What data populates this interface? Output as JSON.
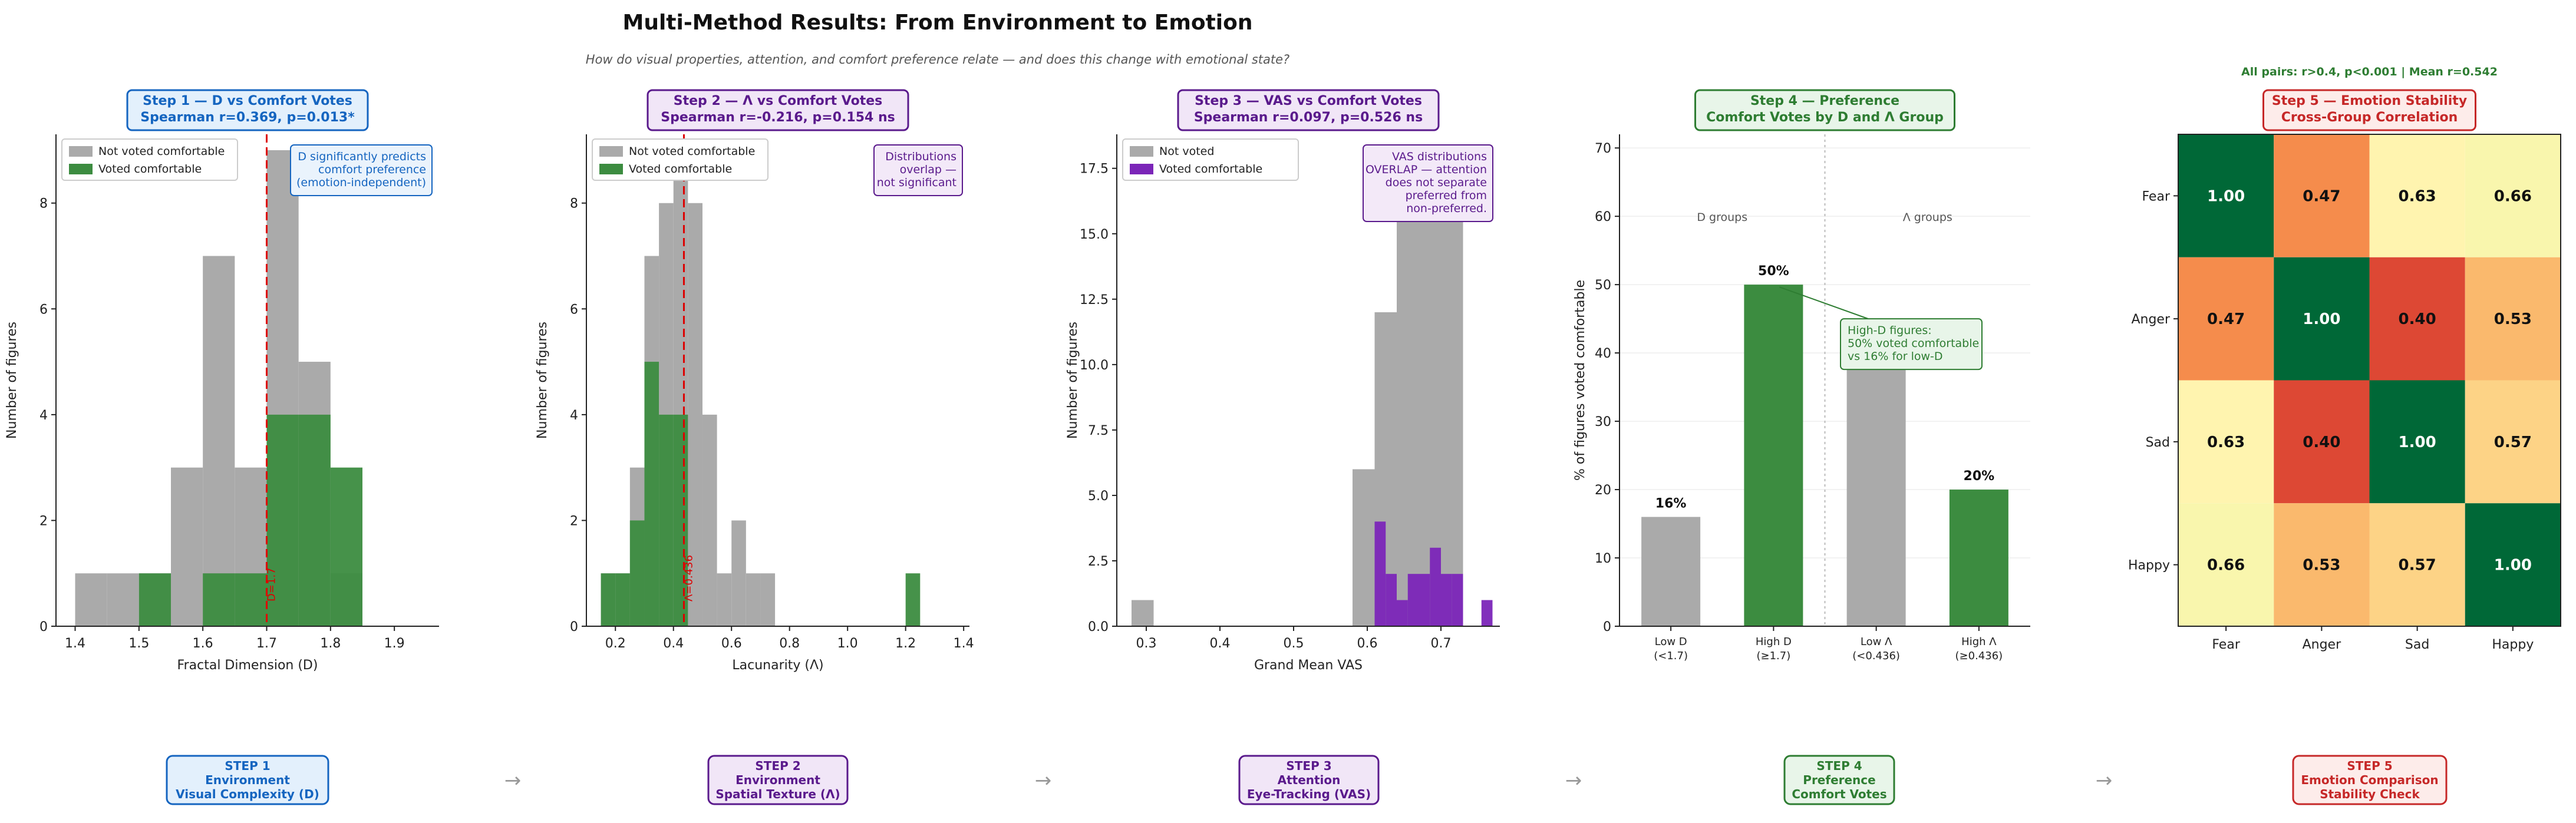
{
  "figure": {
    "title": "Multi-Method Results: From Environment to Emotion",
    "subtitle": "How do visual properties, attention, and comfort preference relate — and does this change with emotional state?"
  },
  "colors": {
    "gray": "#aaaaaa",
    "green": "#3c8c40",
    "purple": "#7b25b8",
    "red_line": "#dd0000",
    "blue": "#1565c0",
    "dark_purple": "#5a1a8c",
    "dark_green": "#2e7d32",
    "dark_red": "#c62828"
  },
  "steps": [
    {
      "label": "STEP 1",
      "l2": "Environment",
      "l3": "Visual Complexity (D)",
      "color": "#1565c0",
      "bg": "#e3f0fc"
    },
    {
      "label": "STEP 2",
      "l2": "Environment",
      "l3": "Spatial Texture (Λ)",
      "color": "#5a1a8c",
      "bg": "#f1e6f7"
    },
    {
      "label": "STEP 3",
      "l2": "Attention",
      "l3": "Eye-Tracking (VAS)",
      "color": "#5a1a8c",
      "bg": "#f1e6f7"
    },
    {
      "label": "STEP 4",
      "l2": "Preference",
      "l3": "Comfort Votes",
      "color": "#2e7d32",
      "bg": "#e8f5e9"
    },
    {
      "label": "STEP 5",
      "l2": "Emotion Comparison",
      "l3": "Stability Check",
      "color": "#c62828",
      "bg": "#fdecea"
    }
  ],
  "arrow_glyph": "→",
  "chart_data": [
    {
      "type": "histogram",
      "title": "Step 1 — D vs Comfort Votes",
      "title2": "Spearman r=0.369, p=0.013*",
      "title_color": "#1565c0",
      "title_bg": "#e3f0fc",
      "xlabel": "Fractal Dimension (D)",
      "ylabel": "Number of figures",
      "xlim": [
        1.37,
        1.97
      ],
      "ylim": [
        0,
        9.3
      ],
      "xticks": [
        1.4,
        1.5,
        1.6,
        1.7,
        1.8,
        1.9
      ],
      "yticks": [
        0,
        2,
        4,
        6,
        8
      ],
      "bin_width": 0.05,
      "series": [
        {
          "name": "Not voted comfortable",
          "color": "#aaaaaa",
          "bins": [
            [
              1.4,
              1
            ],
            [
              1.45,
              1
            ],
            [
              1.5,
              1
            ],
            [
              1.55,
              3
            ],
            [
              1.6,
              7
            ],
            [
              1.65,
              3
            ],
            [
              1.7,
              9
            ],
            [
              1.75,
              5
            ],
            [
              1.8,
              1
            ]
          ]
        },
        {
          "name": "Voted comfortable",
          "color": "#3c8c40",
          "bins": [
            [
              1.5,
              1
            ],
            [
              1.6,
              1
            ],
            [
              1.65,
              1
            ],
            [
              1.7,
              4
            ],
            [
              1.75,
              4
            ],
            [
              1.8,
              3
            ]
          ]
        }
      ],
      "threshold": {
        "x": 1.7,
        "label": "D=1.7"
      },
      "annotation": [
        "D significantly predicts",
        "comfort preference",
        "(emotion-independent)"
      ],
      "annotation_color": "#1565c0",
      "annotation_bg": "#eaf3fc"
    },
    {
      "type": "histogram",
      "title": "Step 2 — Λ vs Comfort Votes",
      "title2": "Spearman r=-0.216, p=0.154 ns",
      "title_color": "#5a1a8c",
      "title_bg": "#f1e6f7",
      "xlabel": "Lacunarity (Λ)",
      "ylabel": "Number of figures",
      "xlim": [
        0.1,
        1.42
      ],
      "ylim": [
        0,
        9.3
      ],
      "xticks": [
        0.2,
        0.4,
        0.6,
        0.8,
        1.0,
        1.2,
        1.4
      ],
      "yticks": [
        0,
        2,
        4,
        6,
        8
      ],
      "bin_width": 0.05,
      "series": [
        {
          "name": "Not voted comfortable",
          "color": "#aaaaaa",
          "bins": [
            [
              0.15,
              1
            ],
            [
              0.2,
              1
            ],
            [
              0.25,
              3
            ],
            [
              0.3,
              7
            ],
            [
              0.35,
              8
            ],
            [
              0.4,
              9
            ],
            [
              0.45,
              8
            ],
            [
              0.5,
              4
            ],
            [
              0.55,
              1
            ],
            [
              0.6,
              2
            ],
            [
              0.65,
              1
            ],
            [
              0.7,
              1
            ]
          ]
        },
        {
          "name": "Voted comfortable",
          "color": "#3c8c40",
          "bins": [
            [
              0.15,
              1
            ],
            [
              0.2,
              1
            ],
            [
              0.25,
              2
            ],
            [
              0.3,
              5
            ],
            [
              0.35,
              4
            ],
            [
              0.4,
              4
            ],
            [
              1.2,
              1
            ]
          ]
        }
      ],
      "threshold": {
        "x": 0.436,
        "label": "Λ=0.436"
      },
      "annotation": [
        "Distributions",
        "overlap —",
        "not significant"
      ],
      "annotation_color": "#5a1a8c",
      "annotation_bg": "#f3e9f8"
    },
    {
      "type": "histogram",
      "title": "Step 3 — VAS vs Comfort Votes",
      "title2": "Spearman r=0.097, p=0.526 ns",
      "title_color": "#5a1a8c",
      "title_bg": "#f1e6f7",
      "xlabel": "Grand Mean VAS",
      "ylabel": "Number of figures",
      "xlim": [
        0.26,
        0.78
      ],
      "ylim": [
        0,
        18.8
      ],
      "xticks": [
        0.3,
        0.4,
        0.5,
        0.6,
        0.7
      ],
      "yticks": [
        0.0,
        2.5,
        5.0,
        7.5,
        10.0,
        12.5,
        15.0,
        17.5
      ],
      "bin_width": 0.03,
      "series": [
        {
          "name": "Not voted",
          "color": "#aaaaaa",
          "bins": [
            [
              0.28,
              1
            ],
            [
              0.58,
              6
            ],
            [
              0.61,
              12
            ],
            [
              0.64,
              18
            ],
            [
              0.67,
              18
            ],
            [
              0.7,
              16
            ]
          ]
        },
        {
          "name": "Voted comfortable",
          "color": "#7b25b8",
          "bins": [
            [
              0.61,
              4
            ],
            [
              0.625,
              2
            ],
            [
              0.64,
              1
            ],
            [
              0.655,
              2
            ],
            [
              0.67,
              2
            ],
            [
              0.685,
              3
            ],
            [
              0.7,
              2
            ],
            [
              0.715,
              2
            ],
            [
              0.755,
              1
            ]
          ],
          "bin_width": 0.015
        }
      ],
      "annotation": [
        "VAS distributions",
        "OVERLAP — attention",
        "does not separate",
        "preferred from",
        "non-preferred."
      ],
      "annotation_color": "#5a1a8c",
      "annotation_bg": "#f3e9f8"
    },
    {
      "type": "bar",
      "title": "Step 4 — Preference",
      "title2": "Comfort Votes by D and Λ Group",
      "title_color": "#2e7d32",
      "title_bg": "#e8f5e9",
      "ylabel": "% of figures voted comfortable",
      "ylim": [
        0,
        72
      ],
      "yticks": [
        0,
        10,
        20,
        30,
        40,
        50,
        60,
        70
      ],
      "categories": [
        [
          "Low D",
          "(<1.7)"
        ],
        [
          "High D",
          "(≥1.7)"
        ],
        [
          "Low Λ",
          "(<0.436)"
        ],
        [
          "High Λ",
          "(≥0.436)"
        ]
      ],
      "values": [
        16,
        50,
        40,
        20
      ],
      "value_labels": [
        "16%",
        "50%",
        "",
        "20%"
      ],
      "bar_colors": [
        "#aaaaaa",
        "#3c8c40",
        "#aaaaaa",
        "#3c8c40"
      ],
      "group_labels": [
        "D groups",
        "Λ groups"
      ],
      "annotation": [
        "High-D figures:",
        "50% voted comfortable",
        "vs 16% for low-D"
      ],
      "annotation_color": "#2e7d32",
      "annotation_bg": "#e8f5e9"
    },
    {
      "type": "heatmap",
      "top_note": "All pairs: r>0.4, p<0.001 | Mean r=0.542",
      "title": "Step 5 — Emotion Stability",
      "title2": "Cross-Group Correlation",
      "title_color": "#c62828",
      "title_bg": "#fdecea",
      "rows": [
        "Fear",
        "Anger",
        "Sad",
        "Happy"
      ],
      "cols": [
        "Fear",
        "Anger",
        "Sad",
        "Happy"
      ],
      "values": [
        [
          1.0,
          0.47,
          0.63,
          0.66
        ],
        [
          0.47,
          1.0,
          0.4,
          0.53
        ],
        [
          0.63,
          0.4,
          1.0,
          0.57
        ],
        [
          0.66,
          0.53,
          0.57,
          1.0
        ]
      ],
      "labels": [
        [
          "1.00",
          "0.47",
          "0.63",
          "0.66"
        ],
        [
          "0.47",
          "1.00",
          "0.40",
          "0.53"
        ],
        [
          "0.63",
          "0.40",
          "1.00",
          "0.57"
        ],
        [
          "0.66",
          "0.53",
          "0.57",
          "1.00"
        ]
      ],
      "colormap": "RdYlGn"
    }
  ]
}
